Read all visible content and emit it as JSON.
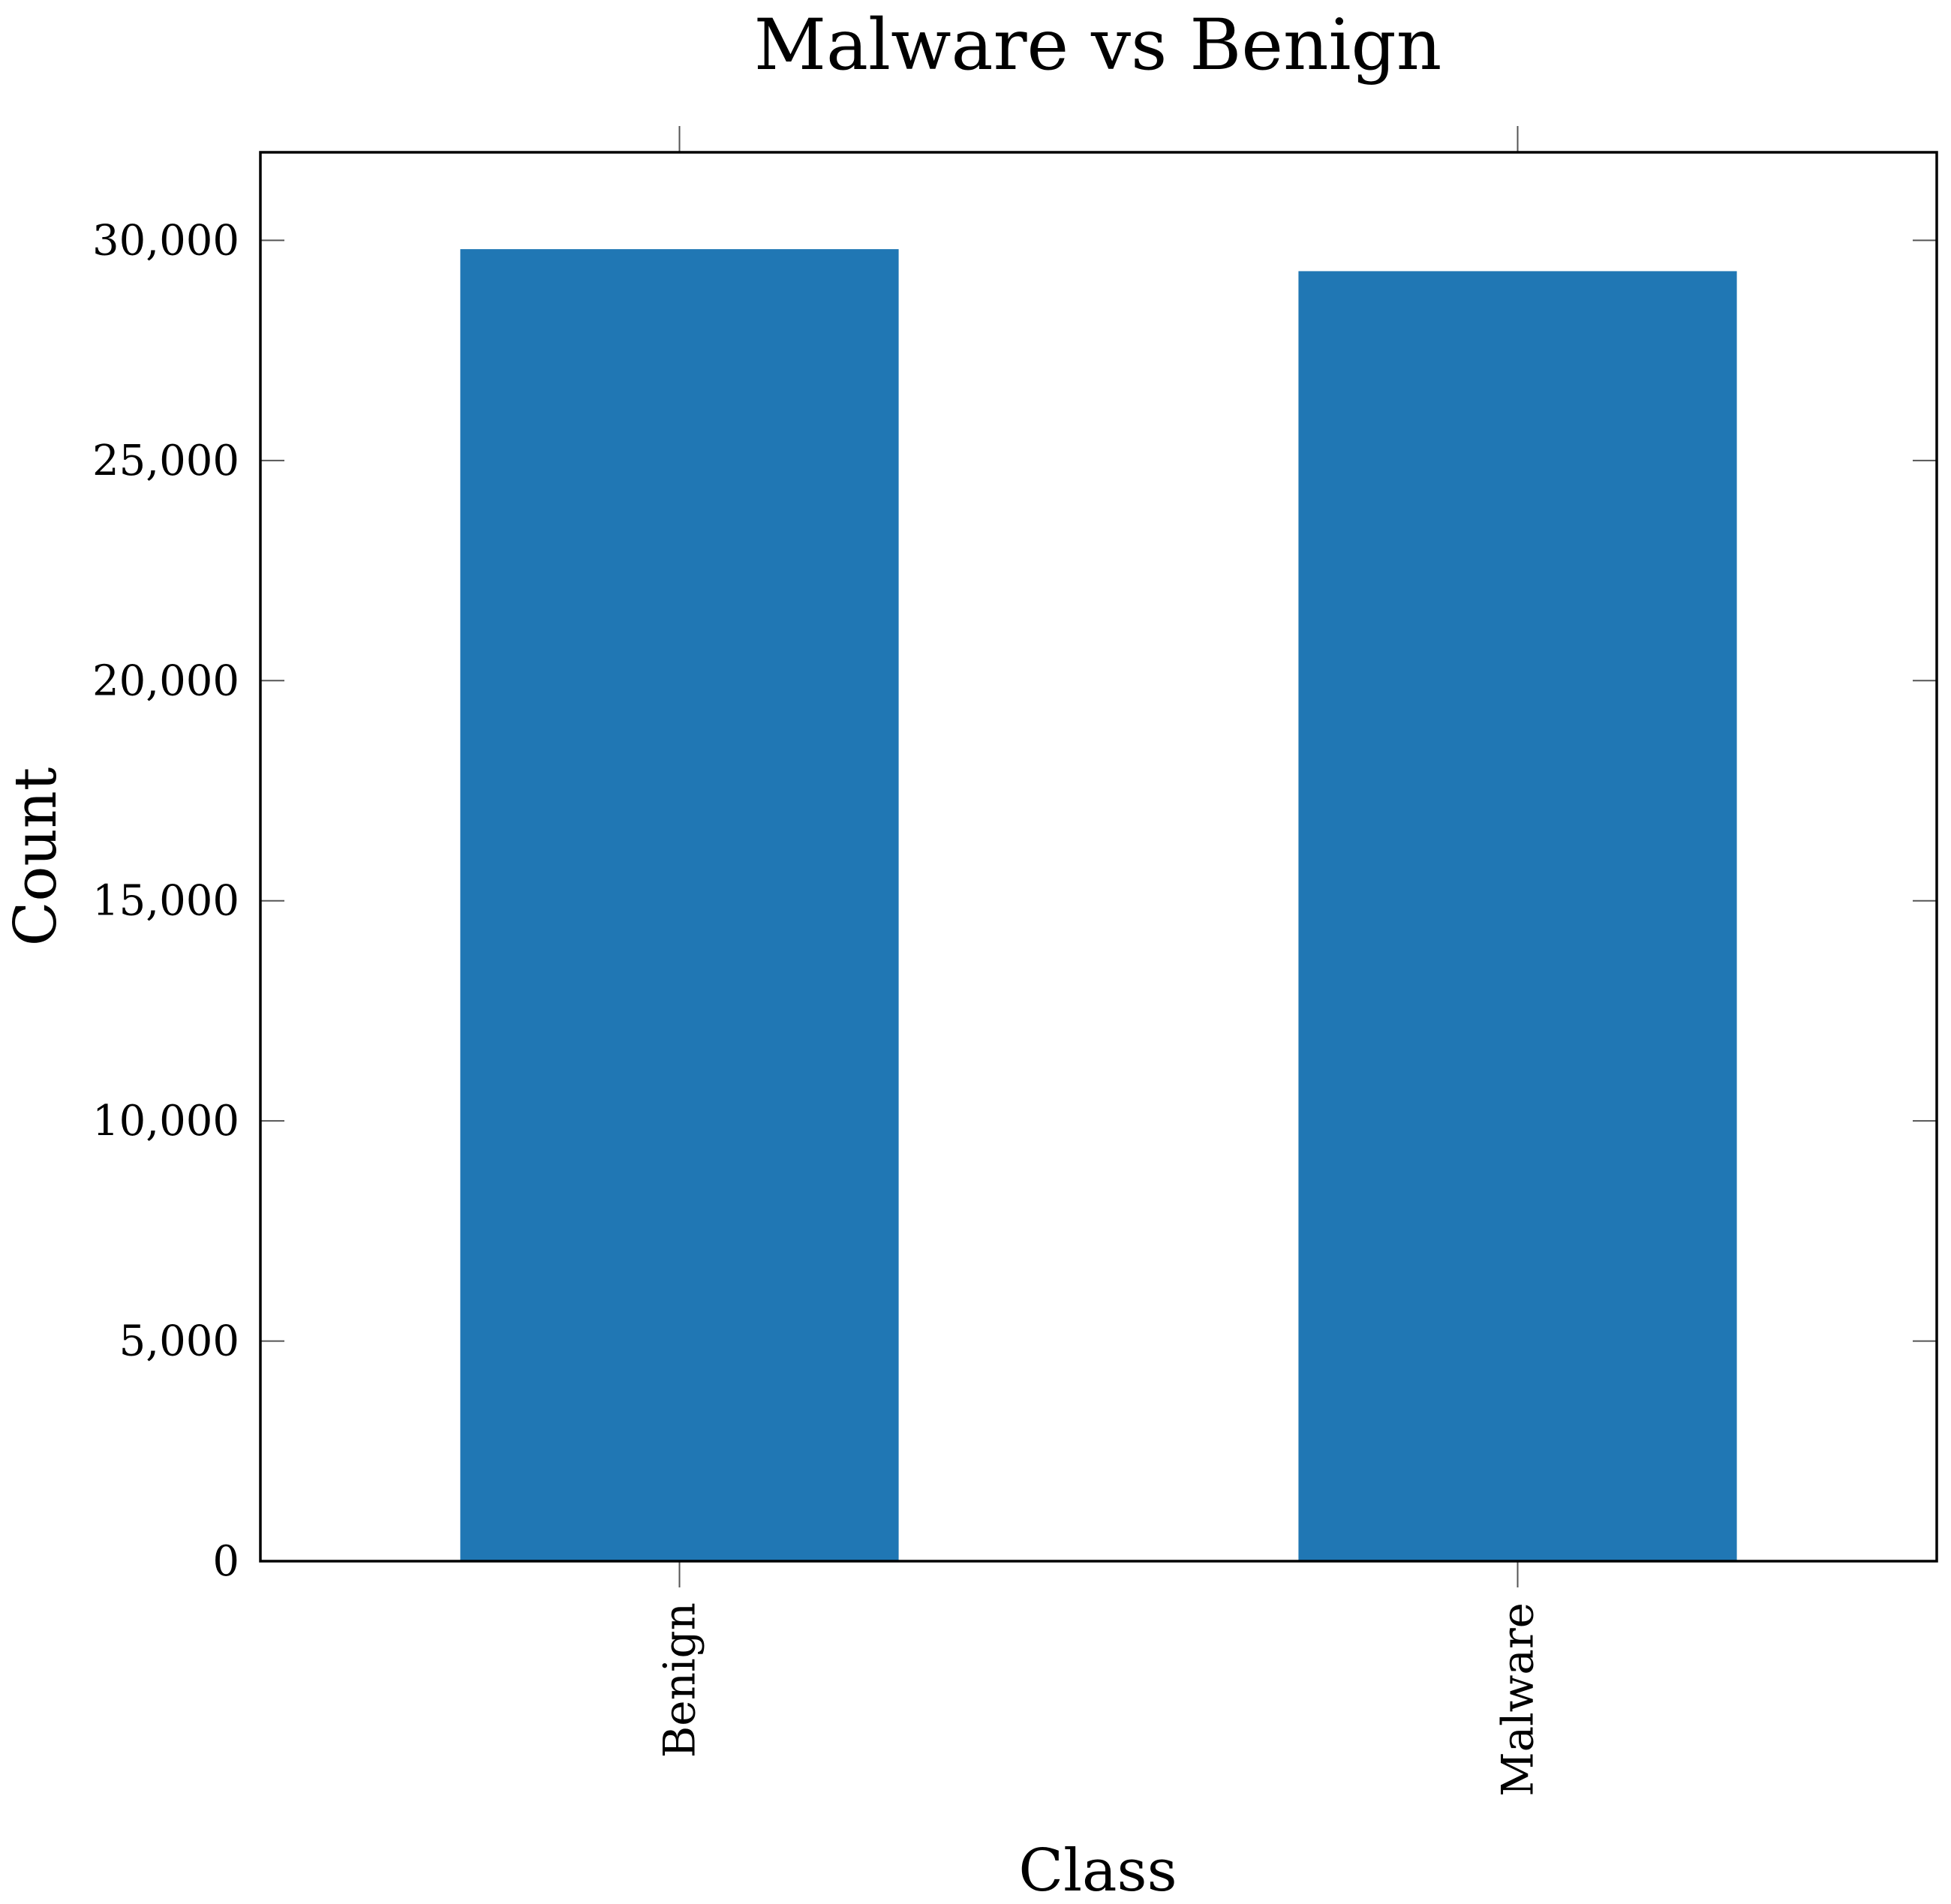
{
  "chart_data": {
    "type": "bar",
    "title": "Malware vs Benign",
    "xlabel": "Class",
    "ylabel": "Count",
    "categories": [
      "Benign",
      "Malware"
    ],
    "values": [
      29800,
      29300
    ],
    "ylim": [
      0,
      32000
    ],
    "yticks": [
      0,
      5000,
      10000,
      15000,
      20000,
      25000,
      30000
    ],
    "ytick_labels": [
      "0",
      "5,000",
      "10,000",
      "15,000",
      "20,000",
      "25,000",
      "30,000"
    ],
    "grid": false,
    "legend": "none",
    "bar_color": "#2077b4"
  }
}
